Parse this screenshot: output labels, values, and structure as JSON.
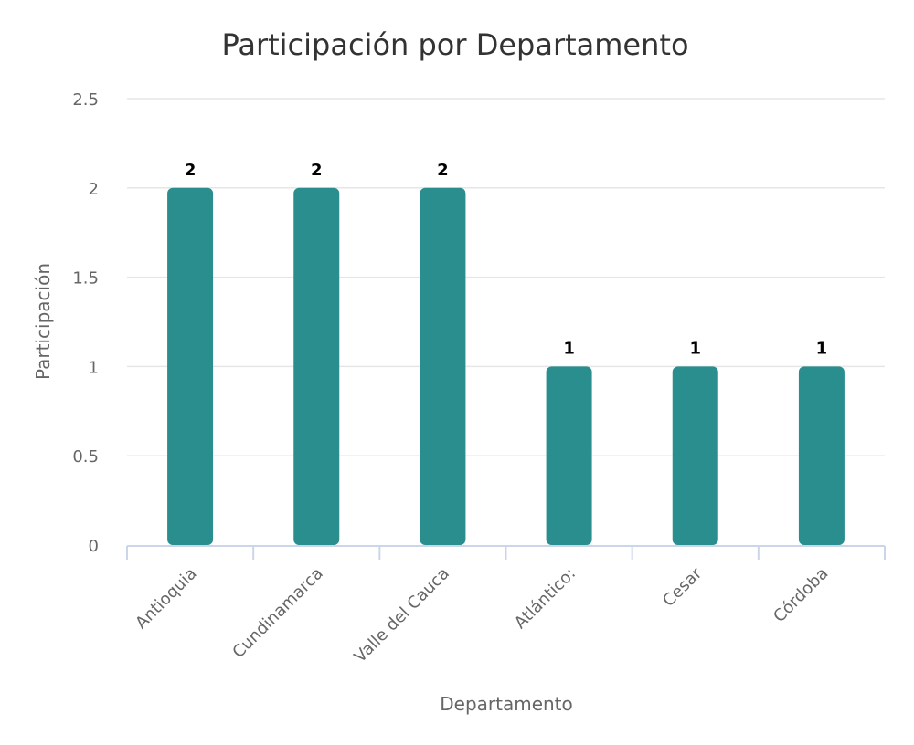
{
  "chart_data": {
    "type": "bar",
    "title": "Participación por Departamento",
    "xlabel": "Departamento",
    "ylabel": "Participación",
    "categories": [
      "Antioquia",
      "Cundinamarca",
      "Valle del Cauca",
      "Atlántico:",
      "Cesar",
      "Córdoba"
    ],
    "values": [
      2,
      2,
      2,
      1,
      1,
      1
    ],
    "data_labels": [
      "2",
      "2",
      "2",
      "1",
      "1",
      "1"
    ],
    "ylim": [
      0,
      2.5
    ],
    "yticks": [
      "0",
      "0.5",
      "1",
      "1.5",
      "2",
      "2.5"
    ],
    "grid": true,
    "legend": "none",
    "bar_color": "#2b8e8e"
  }
}
